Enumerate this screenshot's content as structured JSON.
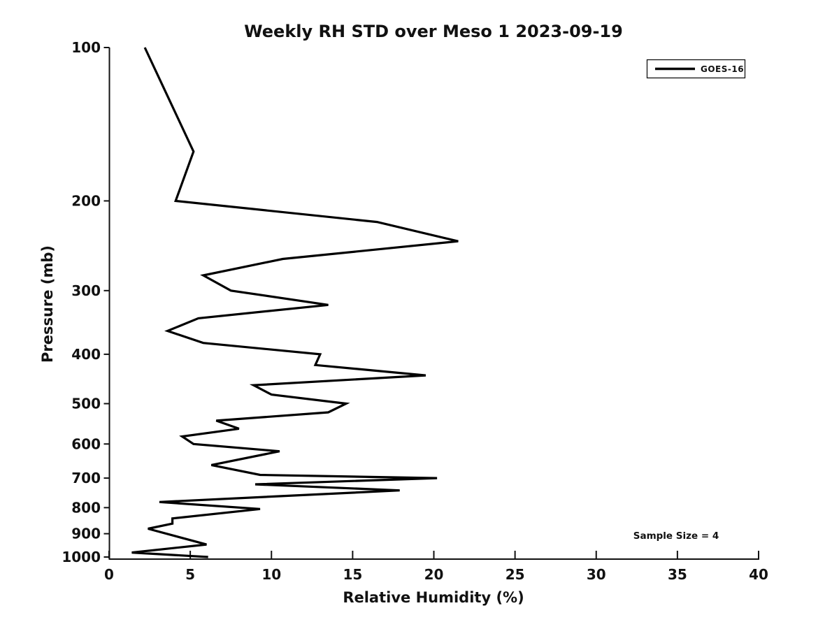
{
  "chart_data": {
    "type": "line",
    "title": "Weekly RH STD over Meso 1 2023-09-19",
    "xlabel": "Relative Humidity (%)",
    "ylabel": "Pressure (mb)",
    "xlim": [
      0,
      40
    ],
    "ylim": [
      100,
      1000
    ],
    "y_scale": "log",
    "y_inverted": true,
    "grid": false,
    "x_ticks": [
      0,
      5,
      10,
      15,
      20,
      25,
      30,
      35,
      40
    ],
    "y_ticks": [
      100,
      200,
      300,
      400,
      500,
      600,
      700,
      800,
      900,
      1000
    ],
    "legend": {
      "position": "upper right",
      "entries": [
        {
          "label": "GOES-16",
          "color": "#000000"
        }
      ]
    },
    "annotations": [
      {
        "text": "Sample Size = 4"
      }
    ],
    "series": [
      {
        "name": "GOES-16",
        "color": "#000000",
        "pressure_mb": [
          100,
          160,
          200,
          220,
          240,
          260,
          280,
          300,
          320,
          340,
          360,
          380,
          400,
          420,
          440,
          460,
          480,
          500,
          520,
          540,
          560,
          580,
          600,
          620,
          660,
          690,
          700,
          720,
          740,
          780,
          805,
          840,
          860,
          880,
          945,
          980,
          1000
        ],
        "rh_std_percent": [
          2.2,
          5.2,
          4.1,
          16.5,
          21.5,
          10.7,
          5.8,
          7.5,
          13.5,
          5.5,
          3.6,
          5.8,
          13.0,
          12.7,
          19.5,
          8.9,
          10.0,
          14.6,
          13.5,
          6.6,
          8.0,
          4.5,
          5.2,
          10.5,
          6.3,
          9.3,
          20.2,
          9.0,
          17.9,
          3.1,
          9.3,
          3.9,
          3.9,
          2.4,
          6.0,
          1.4,
          6.1
        ]
      }
    ],
    "line_color": "#000000"
  }
}
